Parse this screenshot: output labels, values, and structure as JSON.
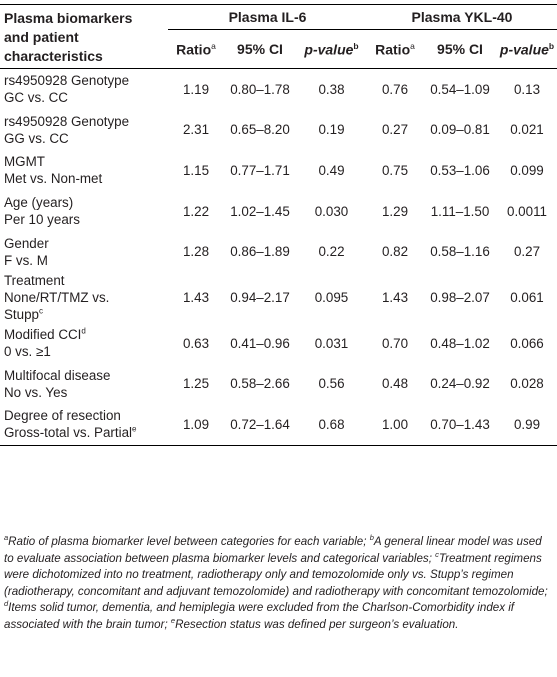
{
  "table": {
    "corner_header": [
      "Plasma biomarkers",
      "and patient",
      "characteristics"
    ],
    "groups": [
      "Plasma IL-6",
      "Plasma YKL-40"
    ],
    "subheaders": {
      "ratio": "Ratio",
      "ratio_sup": "a",
      "ci": "95% CI",
      "pvalue": "p-value",
      "pvalue_sup": "b"
    },
    "rows": [
      {
        "line1": "rs4950928 Genotype",
        "line2": "GC vs. CC",
        "sup": "",
        "il6_ratio": "1.19",
        "il6_ci": "0.80–1.78",
        "il6_p": "0.38",
        "ykl_ratio": "0.76",
        "ykl_ci": "0.54–1.09",
        "ykl_p": "0.13"
      },
      {
        "line1": "rs4950928 Genotype",
        "line2": "GG vs. CC",
        "sup": "",
        "il6_ratio": "2.31",
        "il6_ci": "0.65–8.20",
        "il6_p": "0.19",
        "ykl_ratio": "0.27",
        "ykl_ci": "0.09–0.81",
        "ykl_p": "0.021"
      },
      {
        "line1": "MGMT",
        "line2": "Met vs. Non-met",
        "sup": "",
        "il6_ratio": "1.15",
        "il6_ci": "0.77–1.71",
        "il6_p": "0.49",
        "ykl_ratio": "0.75",
        "ykl_ci": "0.53–1.06",
        "ykl_p": "0.099"
      },
      {
        "line1": "Age (years)",
        "line2": "Per 10 years",
        "sup": "",
        "il6_ratio": "1.22",
        "il6_ci": "1.02–1.45",
        "il6_p": "0.030",
        "ykl_ratio": "1.29",
        "ykl_ci": "1.11–1.50",
        "ykl_p": "0.0011"
      },
      {
        "line1": "Gender",
        "line2": "F vs. M",
        "sup": "",
        "il6_ratio": "1.28",
        "il6_ci": "0.86–1.89",
        "il6_p": "0.22",
        "ykl_ratio": "0.82",
        "ykl_ci": "0.58–1.16",
        "ykl_p": "0.27"
      },
      {
        "line1": "Treatment",
        "line2": "None/RT/TMZ vs.",
        "line3": "Stupp",
        "sup3": "c",
        "il6_ratio": "1.43",
        "il6_ci": "0.94–2.17",
        "il6_p": "0.095",
        "ykl_ratio": "1.43",
        "ykl_ci": "0.98–2.07",
        "ykl_p": "0.061"
      },
      {
        "line1": "Modified CCI",
        "sup1": "d",
        "line2": "0 vs. ≥1",
        "il6_ratio": "0.63",
        "il6_ci": "0.41–0.96",
        "il6_p": "0.031",
        "ykl_ratio": "0.70",
        "ykl_ci": "0.48–1.02",
        "ykl_p": "0.066"
      },
      {
        "line1": "Multifocal disease",
        "line2": "No vs. Yes",
        "sup": "",
        "il6_ratio": "1.25",
        "il6_ci": "0.58–2.66",
        "il6_p": "0.56",
        "ykl_ratio": "0.48",
        "ykl_ci": "0.24–0.92",
        "ykl_p": "0.028"
      },
      {
        "line1": "Degree of resection",
        "line2": "Gross-total vs. Partial",
        "sup2": "e",
        "il6_ratio": "1.09",
        "il6_ci": "0.72–1.64",
        "il6_p": "0.68",
        "ykl_ratio": "1.00",
        "ykl_ci": "0.70–1.43",
        "ykl_p": "0.99"
      }
    ]
  },
  "footnotes": [
    {
      "mark": "a",
      "text": "Ratio of plasma biomarker level between categories for each variable; "
    },
    {
      "mark": "b",
      "text": "A general linear model was used to evaluate association between plasma biomarker levels and categorical variables; "
    },
    {
      "mark": "c",
      "text": "Treatment regimens were dichotomized into no treatment, radiotherapy only and temozolomide only vs. Stupp’s regimen (radiotherapy, concomitant and adjuvant temozolomide) and radiotherapy with concomitant temozolomide; "
    },
    {
      "mark": "d",
      "text": "Items solid tumor, dementia, and hemiplegia were excluded from the Charlson-Comorbidity index if associated with the brain tumor; "
    },
    {
      "mark": "e",
      "text": "Resection status was defined per surgeon’s evaluation."
    }
  ]
}
